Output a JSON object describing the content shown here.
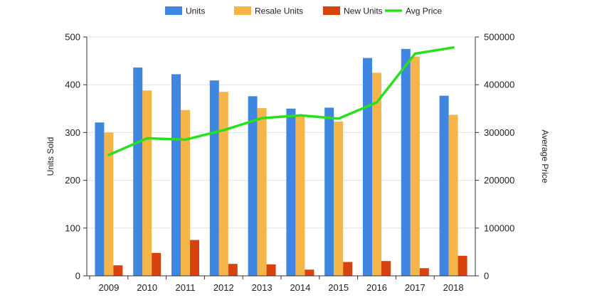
{
  "chart_data": {
    "type": "bar",
    "categories": [
      "2009",
      "2010",
      "2011",
      "2012",
      "2013",
      "2014",
      "2015",
      "2016",
      "2017",
      "2018"
    ],
    "series": [
      {
        "name": "Units",
        "type": "bar",
        "axis": "left",
        "color": "#3f86e0",
        "values": [
          321,
          436,
          422,
          409,
          376,
          350,
          352,
          456,
          475,
          377
        ]
      },
      {
        "name": "Resale Units",
        "type": "bar",
        "axis": "left",
        "color": "#f5b548",
        "values": [
          300,
          388,
          347,
          385,
          351,
          337,
          323,
          425,
          459,
          337
        ]
      },
      {
        "name": "New Units",
        "type": "bar",
        "axis": "left",
        "color": "#d8420f",
        "values": [
          22,
          48,
          75,
          25,
          24,
          13,
          29,
          31,
          16,
          42
        ]
      },
      {
        "name": "Avg Price",
        "type": "line",
        "axis": "right",
        "color": "#27e11c",
        "values": [
          253000,
          288000,
          285000,
          305000,
          330000,
          336000,
          329000,
          363000,
          465000,
          478000
        ]
      }
    ],
    "ylabel": "Units Sold",
    "y2label": "Average Price",
    "ylim": [
      0,
      500
    ],
    "y2lim": [
      0,
      500000
    ],
    "yticks": [
      "0",
      "100",
      "200",
      "300",
      "400",
      "500"
    ],
    "y2ticks": [
      "0",
      "100000",
      "200000",
      "300000",
      "400000",
      "500000"
    ],
    "grid": true,
    "legend_position": "top"
  }
}
